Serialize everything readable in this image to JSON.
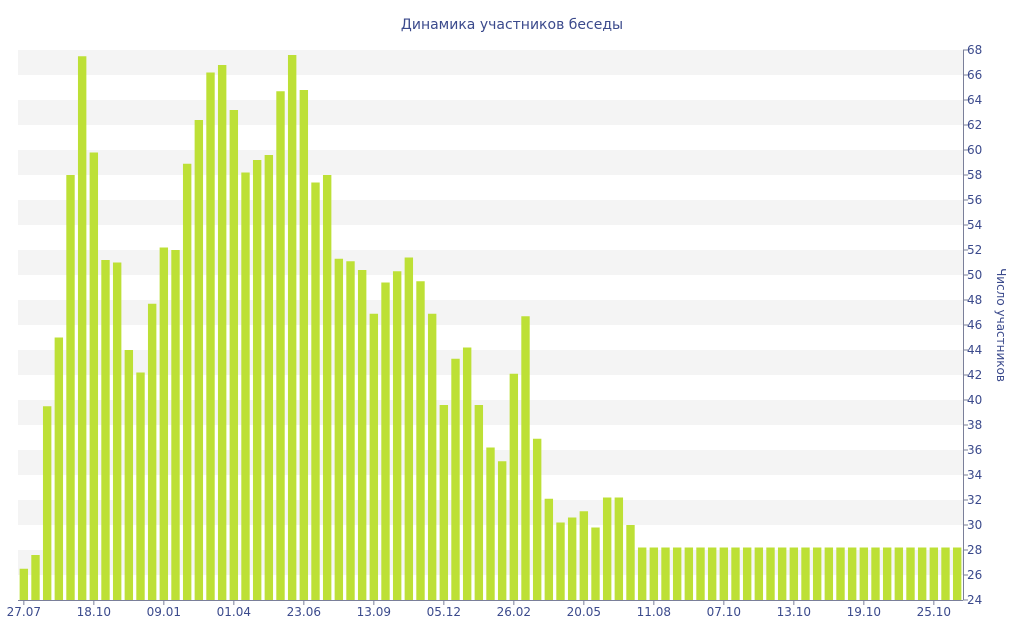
{
  "chart_data": {
    "type": "bar",
    "title": "Динамика участников беседы",
    "ylabel": "Число участников",
    "xlabel": "",
    "ylim": [
      24,
      68
    ],
    "y_ticks": [
      24,
      26,
      28,
      30,
      32,
      34,
      36,
      38,
      40,
      42,
      44,
      46,
      48,
      50,
      52,
      54,
      56,
      58,
      60,
      62,
      64,
      66,
      68
    ],
    "x_tick_labels": [
      {
        "index": 0,
        "label": "27.07"
      },
      {
        "index": 6,
        "label": "18.10"
      },
      {
        "index": 12,
        "label": "09.01"
      },
      {
        "index": 18,
        "label": "01.04"
      },
      {
        "index": 24,
        "label": "23.06"
      },
      {
        "index": 30,
        "label": "13.09"
      },
      {
        "index": 36,
        "label": "05.12"
      },
      {
        "index": 42,
        "label": "26.02"
      },
      {
        "index": 48,
        "label": "20.05"
      },
      {
        "index": 54,
        "label": "11.08"
      },
      {
        "index": 60,
        "label": "07.10"
      },
      {
        "index": 66,
        "label": "13.10"
      },
      {
        "index": 72,
        "label": "19.10"
      },
      {
        "index": 78,
        "label": "25.10"
      }
    ],
    "values": [
      26.5,
      27.6,
      39.5,
      45,
      58,
      67.5,
      59.8,
      51.2,
      51,
      44,
      42.2,
      47.7,
      52.2,
      52,
      58.9,
      62.4,
      66.2,
      66.8,
      63.2,
      58.2,
      59.2,
      59.6,
      64.7,
      67.6,
      64.8,
      57.4,
      58,
      51.3,
      51.1,
      50.4,
      46.9,
      49.4,
      50.3,
      51.4,
      49.5,
      46.9,
      39.6,
      43.3,
      44.2,
      39.6,
      36.2,
      35.1,
      42.1,
      46.7,
      36.9,
      32.1,
      30.2,
      30.6,
      31.1,
      29.8,
      32.2,
      32.2,
      30,
      28.2,
      28.2,
      28.2,
      28.2,
      28.2,
      28.2,
      28.2,
      28.2,
      28.2,
      28.2,
      28.2,
      28.2,
      28.2,
      28.2,
      28.2,
      28.2,
      28.2,
      28.2,
      28.2,
      28.2,
      28.2,
      28.2,
      28.2,
      28.2,
      28.2,
      28.2,
      28.2,
      28.2
    ],
    "bar_color": "#bde036",
    "band_color": "#f4f4f4",
    "text_color": "#3b4a8c",
    "axis_color": "#7a7f99",
    "grid": true,
    "y_axis_side": "right"
  }
}
